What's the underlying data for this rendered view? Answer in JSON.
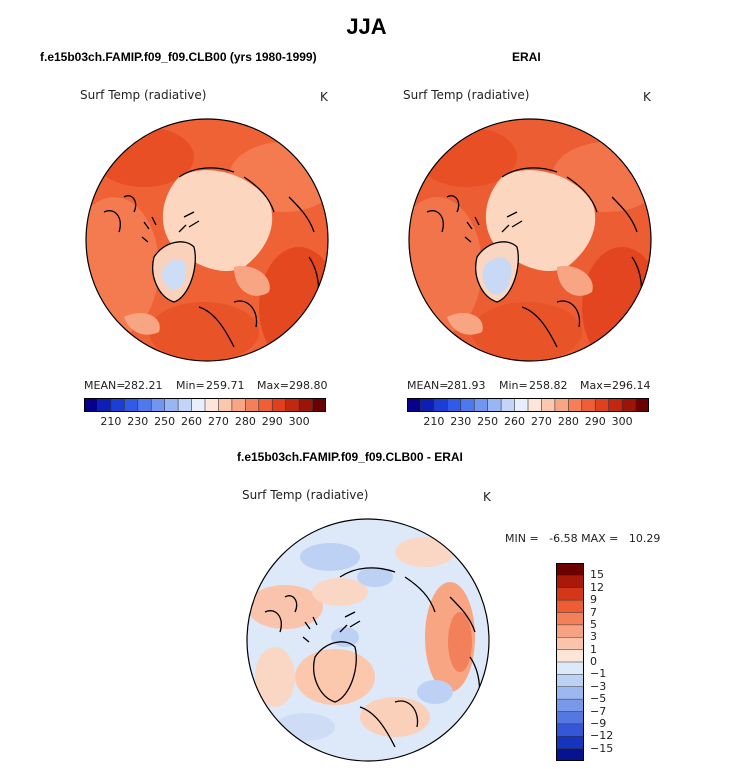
{
  "main_title": "JJA",
  "panels": [
    {
      "title": "f.e15b03ch.FAMIP.f09_f09.CLB00 (yrs 1980-1999)",
      "variable": "Surf Temp (radiative)",
      "units": "K",
      "mean_label": "MEAN=",
      "mean_value": "282.21",
      "min_label": "Min=",
      "min_value": "259.71",
      "max_label": "Max=",
      "max_value": "298.80"
    },
    {
      "title": "ERAI",
      "variable": "Surf Temp (radiative)",
      "units": "K",
      "mean_label": "MEAN=",
      "mean_value": "281.93",
      "min_label": "Min=",
      "min_value": "258.82",
      "max_label": "Max=",
      "max_value": "296.14"
    },
    {
      "title": "f.e15b03ch.FAMIP.f09_f09.CLB00 - ERAI",
      "variable": "Surf Temp (radiative)",
      "units": "K",
      "minmax_text": "MIN =   -6.58 MAX =   10.29"
    }
  ],
  "abs_colorbar": {
    "tick_labels": [
      "210",
      "230",
      "250",
      "260",
      "270",
      "280",
      "290",
      "300"
    ],
    "colors": [
      "#08008c",
      "#0c1fb4",
      "#1a3ed6",
      "#2f5be6",
      "#4d78ee",
      "#7096f2",
      "#98b6f5",
      "#c2d4f8",
      "#e8eefa",
      "#fde6d8",
      "#fbc8ae",
      "#f8a583",
      "#f57f58",
      "#f05e36",
      "#e0401c",
      "#c22810",
      "#9c1408",
      "#6b0000"
    ]
  },
  "diff_colorbar": {
    "tick_labels": [
      "15",
      "12",
      "9",
      "7",
      "5",
      "3",
      "1",
      "0",
      "-1",
      "-3",
      "-5",
      "-7",
      "-9",
      "-12",
      "-15"
    ],
    "colors": [
      "#6b0000",
      "#a8190a",
      "#d4361a",
      "#ec5d33",
      "#f2805a",
      "#f6a283",
      "#fac4ac",
      "#fde6d8",
      "#dde8f8",
      "#bdd1f4",
      "#9bb8f0",
      "#7898ea",
      "#5577e2",
      "#3556d6",
      "#1634c0",
      "#06138e"
    ]
  }
}
